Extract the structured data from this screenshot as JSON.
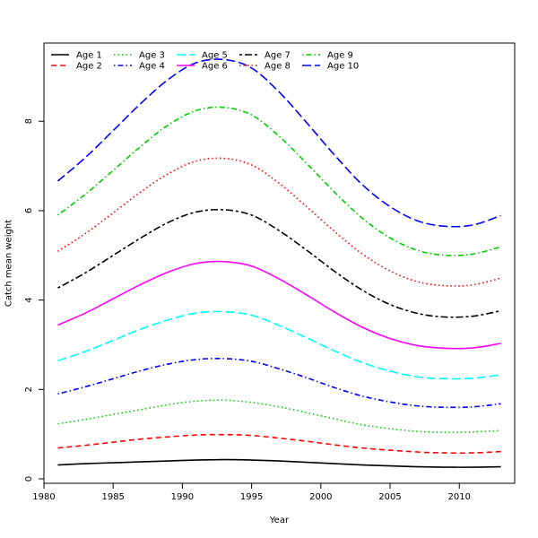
{
  "chart_data": {
    "type": "line",
    "xlabel": "Year",
    "ylabel": "Catch mean weight",
    "xlim": [
      1980,
      2014
    ],
    "ylim": [
      -0.1,
      9.75
    ],
    "xticks": [
      1980,
      1985,
      1990,
      1995,
      2000,
      2005,
      2010
    ],
    "yticks": [
      0,
      2,
      4,
      6,
      8
    ],
    "grid": false,
    "legend_position": "top-left",
    "x": [
      1981,
      1983,
      1985,
      1987,
      1989,
      1991,
      1993,
      1995,
      1997,
      1999,
      2001,
      2003,
      2005,
      2007,
      2009,
      2011,
      2013
    ],
    "series": [
      {
        "name": "Age 1",
        "color": "#000000",
        "dash": "solid",
        "values": [
          0.31,
          0.34,
          0.36,
          0.38,
          0.4,
          0.42,
          0.43,
          0.42,
          0.4,
          0.37,
          0.34,
          0.31,
          0.29,
          0.27,
          0.26,
          0.26,
          0.27
        ]
      },
      {
        "name": "Age 2",
        "color": "#ff0000",
        "dash": "dashed",
        "values": [
          0.69,
          0.75,
          0.82,
          0.89,
          0.94,
          0.98,
          0.99,
          0.97,
          0.91,
          0.84,
          0.76,
          0.69,
          0.64,
          0.6,
          0.58,
          0.58,
          0.61
        ]
      },
      {
        "name": "Age 3",
        "color": "#00cd00",
        "dash": "dotted",
        "values": [
          1.23,
          1.33,
          1.44,
          1.55,
          1.66,
          1.74,
          1.76,
          1.71,
          1.61,
          1.48,
          1.34,
          1.21,
          1.12,
          1.06,
          1.04,
          1.05,
          1.08
        ]
      },
      {
        "name": "Age 4",
        "color": "#0000ff",
        "dash": "dotdash",
        "values": [
          1.9,
          2.06,
          2.24,
          2.42,
          2.57,
          2.67,
          2.69,
          2.63,
          2.46,
          2.26,
          2.04,
          1.85,
          1.72,
          1.63,
          1.6,
          1.61,
          1.68
        ]
      },
      {
        "name": "Age 5",
        "color": "#00ffff",
        "dash": "longdash",
        "values": [
          2.64,
          2.85,
          3.1,
          3.35,
          3.56,
          3.71,
          3.74,
          3.66,
          3.43,
          3.15,
          2.86,
          2.6,
          2.41,
          2.28,
          2.24,
          2.25,
          2.33
        ]
      },
      {
        "name": "Age 6",
        "color": "#ff00ff",
        "dash": "solid",
        "values": [
          3.44,
          3.71,
          4.03,
          4.35,
          4.63,
          4.82,
          4.86,
          4.76,
          4.47,
          4.11,
          3.73,
          3.39,
          3.14,
          2.98,
          2.92,
          2.93,
          3.03
        ]
      },
      {
        "name": "Age 7",
        "color": "#000000",
        "dash": "twodash",
        "values": [
          4.27,
          4.61,
          5.0,
          5.39,
          5.74,
          5.97,
          6.02,
          5.9,
          5.55,
          5.11,
          4.64,
          4.22,
          3.9,
          3.7,
          3.62,
          3.64,
          3.76
        ]
      },
      {
        "name": "Age 8",
        "color": "#ff0000",
        "dash": "dotted",
        "values": [
          5.09,
          5.49,
          5.95,
          6.42,
          6.83,
          7.11,
          7.17,
          7.02,
          6.61,
          6.08,
          5.53,
          5.03,
          4.65,
          4.41,
          4.32,
          4.34,
          4.49
        ]
      },
      {
        "name": "Age 9",
        "color": "#00cd00",
        "dash": "dotdash",
        "values": [
          5.9,
          6.37,
          6.9,
          7.44,
          7.92,
          8.24,
          8.31,
          8.14,
          7.66,
          7.05,
          6.41,
          5.83,
          5.39,
          5.11,
          5.0,
          5.03,
          5.19
        ]
      },
      {
        "name": "Age 10",
        "color": "#0000ff",
        "dash": "longdash",
        "values": [
          6.66,
          7.19,
          7.79,
          8.4,
          8.94,
          9.31,
          9.38,
          9.19,
          8.65,
          7.96,
          7.24,
          6.58,
          6.09,
          5.77,
          5.65,
          5.68,
          5.89
        ]
      }
    ]
  }
}
